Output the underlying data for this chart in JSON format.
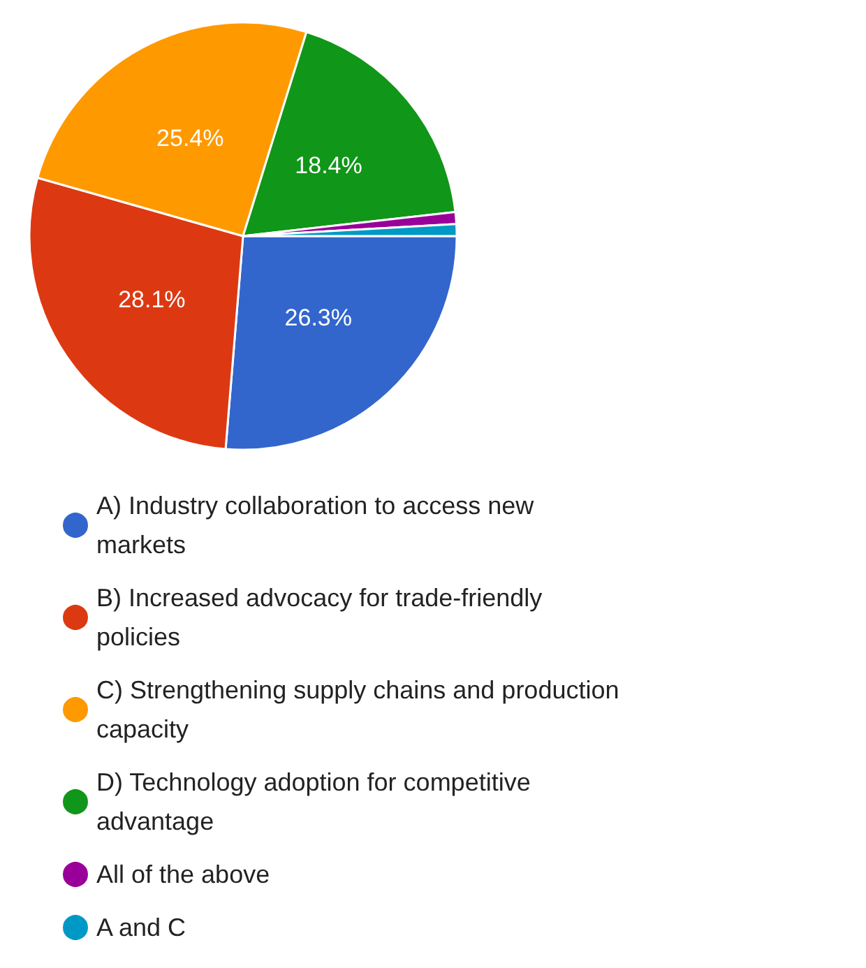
{
  "chart_data": {
    "type": "pie",
    "categories": [
      "A) Industry collaboration to access new markets",
      "B) Increased advocacy for trade-friendly policies",
      "C) Strengthening supply chains and production capacity",
      "D) Technology adoption for competitive advantage",
      "All of the above",
      "A and C"
    ],
    "values": [
      26.3,
      28.1,
      25.4,
      18.4,
      0.9,
      0.9
    ],
    "colors": [
      "#3366cc",
      "#dc3912",
      "#ff9900",
      "#109618",
      "#990099",
      "#0099c6"
    ],
    "value_labels": [
      "26.3%",
      "28.1%",
      "25.4%",
      "18.4%",
      null,
      null
    ],
    "legend": "bottom"
  }
}
